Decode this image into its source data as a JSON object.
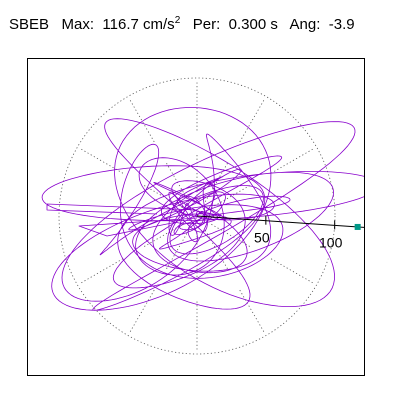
{
  "header": {
    "station": "SBEB",
    "max_label": "Max:",
    "max_value": "116.7",
    "max_unit": "cm/s",
    "max_unit_exp": "2",
    "period_label": "Per:",
    "period_value": "0.300 s",
    "angle_label": "Ang:",
    "angle_value": "-3.9"
  },
  "chart_data": {
    "type": "polar-orbit",
    "title": "",
    "xlabel": "",
    "ylabel": "",
    "r_max": 116.7,
    "radial_ticks": [
      50,
      100
    ],
    "radial_tick_labels": [
      "50",
      "100"
    ],
    "outer_ring_radius": 100,
    "angular_gridlines_deg": [
      0,
      30,
      60,
      90,
      120,
      150,
      180,
      210,
      240,
      270,
      300,
      330
    ],
    "grid": true,
    "max_direction_deg": -3.9,
    "max_value": 116.7,
    "trace_color": "#8800cc",
    "axis_color": "#000000",
    "grid_color": "#555555",
    "marker_color": "#009988",
    "seed": 7
  }
}
